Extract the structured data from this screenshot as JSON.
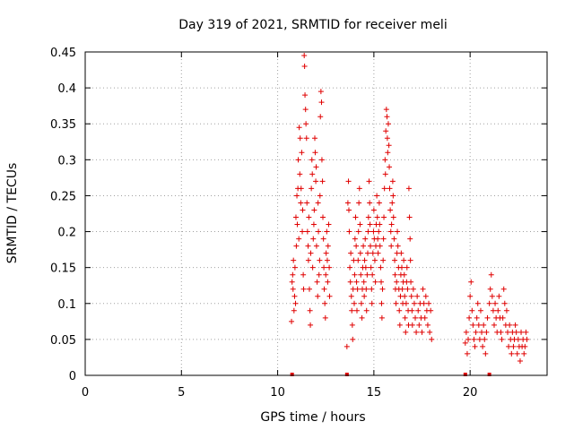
{
  "chart_data": {
    "type": "scatter",
    "title": "Day 319 of 2021, SRMTID for receiver meli",
    "xlabel": "GPS time / hours",
    "ylabel": "SRMTID / TECUs",
    "xlim": [
      0,
      24
    ],
    "ylim": [
      0,
      0.45
    ],
    "xticks": [
      "0",
      "5",
      "10",
      "15",
      "20"
    ],
    "xtick_values": [
      0,
      5,
      10,
      15,
      20
    ],
    "yticks": [
      "0",
      "0.05",
      "0.1",
      "0.15",
      "0.2",
      "0.25",
      "0.3",
      "0.35",
      "0.4",
      "0.45"
    ],
    "ytick_values": [
      0,
      0.05,
      0.1,
      0.15,
      0.2,
      0.25,
      0.3,
      0.35,
      0.4,
      0.45
    ],
    "grid": true,
    "marker": "+",
    "color": "#e00000",
    "zero_markers_x": [
      10.75,
      13.6,
      19.75,
      21.0
    ],
    "series": [
      {
        "name": "SRMTID",
        "points": [
          [
            10.72,
            0.075
          ],
          [
            10.75,
            0.13
          ],
          [
            10.78,
            0.14
          ],
          [
            10.8,
            0.12
          ],
          [
            10.82,
            0.16
          ],
          [
            10.85,
            0.09
          ],
          [
            10.88,
            0.11
          ],
          [
            10.9,
            0.15
          ],
          [
            10.93,
            0.1
          ],
          [
            10.95,
            0.22
          ],
          [
            10.97,
            0.18
          ],
          [
            11.0,
            0.25
          ],
          [
            11.02,
            0.21
          ],
          [
            11.05,
            0.26
          ],
          [
            11.07,
            0.3
          ],
          [
            11.1,
            0.19
          ],
          [
            11.12,
            0.345
          ],
          [
            11.15,
            0.28
          ],
          [
            11.17,
            0.33
          ],
          [
            11.2,
            0.24
          ],
          [
            11.22,
            0.26
          ],
          [
            11.25,
            0.31
          ],
          [
            11.28,
            0.2
          ],
          [
            11.3,
            0.23
          ],
          [
            11.33,
            0.14
          ],
          [
            11.35,
            0.12
          ],
          [
            11.38,
            0.445
          ],
          [
            11.4,
            0.43
          ],
          [
            11.42,
            0.39
          ],
          [
            11.45,
            0.37
          ],
          [
            11.47,
            0.35
          ],
          [
            11.5,
            0.33
          ],
          [
            11.52,
            0.24
          ],
          [
            11.55,
            0.2
          ],
          [
            11.58,
            0.18
          ],
          [
            11.6,
            0.16
          ],
          [
            11.62,
            0.22
          ],
          [
            11.65,
            0.12
          ],
          [
            11.68,
            0.09
          ],
          [
            11.7,
            0.07
          ],
          [
            11.72,
            0.17
          ],
          [
            11.75,
            0.26
          ],
          [
            11.78,
            0.3
          ],
          [
            11.8,
            0.28
          ],
          [
            11.82,
            0.15
          ],
          [
            11.85,
            0.19
          ],
          [
            11.88,
            0.21
          ],
          [
            11.9,
            0.23
          ],
          [
            11.93,
            0.33
          ],
          [
            11.95,
            0.31
          ],
          [
            11.98,
            0.27
          ],
          [
            12.0,
            0.29
          ],
          [
            12.02,
            0.18
          ],
          [
            12.05,
            0.13
          ],
          [
            12.08,
            0.11
          ],
          [
            12.1,
            0.24
          ],
          [
            12.12,
            0.2
          ],
          [
            12.15,
            0.14
          ],
          [
            12.18,
            0.16
          ],
          [
            12.2,
            0.25
          ],
          [
            12.22,
            0.36
          ],
          [
            12.25,
            0.395
          ],
          [
            12.28,
            0.38
          ],
          [
            12.3,
            0.3
          ],
          [
            12.33,
            0.27
          ],
          [
            12.35,
            0.22
          ],
          [
            12.38,
            0.19
          ],
          [
            12.4,
            0.15
          ],
          [
            12.42,
            0.12
          ],
          [
            12.45,
            0.1
          ],
          [
            12.48,
            0.08
          ],
          [
            12.5,
            0.14
          ],
          [
            12.52,
            0.17
          ],
          [
            12.55,
            0.2
          ],
          [
            12.58,
            0.16
          ],
          [
            12.6,
            0.13
          ],
          [
            12.62,
            0.18
          ],
          [
            12.65,
            0.21
          ],
          [
            12.68,
            0.15
          ],
          [
            12.7,
            0.11
          ],
          [
            13.6,
            0.04
          ],
          [
            13.65,
            0.24
          ],
          [
            13.68,
            0.27
          ],
          [
            13.7,
            0.23
          ],
          [
            13.72,
            0.2
          ],
          [
            13.75,
            0.15
          ],
          [
            13.78,
            0.13
          ],
          [
            13.8,
            0.17
          ],
          [
            13.83,
            0.11
          ],
          [
            13.85,
            0.09
          ],
          [
            13.88,
            0.07
          ],
          [
            13.9,
            0.05
          ],
          [
            13.92,
            0.12
          ],
          [
            13.95,
            0.16
          ],
          [
            13.98,
            0.1
          ],
          [
            14.0,
            0.14
          ],
          [
            14.02,
            0.19
          ],
          [
            14.05,
            0.22
          ],
          [
            14.08,
            0.18
          ],
          [
            14.1,
            0.13
          ],
          [
            14.12,
            0.09
          ],
          [
            14.15,
            0.12
          ],
          [
            14.18,
            0.16
          ],
          [
            14.2,
            0.2
          ],
          [
            14.22,
            0.24
          ],
          [
            14.25,
            0.26
          ],
          [
            14.28,
            0.21
          ],
          [
            14.3,
            0.17
          ],
          [
            14.32,
            0.14
          ],
          [
            14.35,
            0.1
          ],
          [
            14.38,
            0.08
          ],
          [
            14.4,
            0.12
          ],
          [
            14.42,
            0.15
          ],
          [
            14.45,
            0.18
          ],
          [
            14.48,
            0.13
          ],
          [
            14.5,
            0.11
          ],
          [
            14.52,
            0.16
          ],
          [
            14.55,
            0.19
          ],
          [
            14.58,
            0.15
          ],
          [
            14.6,
            0.12
          ],
          [
            14.62,
            0.09
          ],
          [
            14.65,
            0.14
          ],
          [
            14.68,
            0.17
          ],
          [
            14.7,
            0.2
          ],
          [
            14.72,
            0.22
          ],
          [
            14.75,
            0.27
          ],
          [
            14.78,
            0.24
          ],
          [
            14.8,
            0.21
          ],
          [
            14.82,
            0.18
          ],
          [
            14.85,
            0.15
          ],
          [
            14.88,
            0.12
          ],
          [
            14.9,
            0.1
          ],
          [
            14.92,
            0.14
          ],
          [
            14.95,
            0.17
          ],
          [
            14.98,
            0.2
          ],
          [
            15.0,
            0.23
          ],
          [
            15.02,
            0.19
          ],
          [
            15.05,
            0.16
          ],
          [
            15.08,
            0.13
          ],
          [
            15.1,
            0.18
          ],
          [
            15.12,
            0.21
          ],
          [
            15.15,
            0.25
          ],
          [
            15.18,
            0.22
          ],
          [
            15.2,
            0.19
          ],
          [
            15.22,
            0.17
          ],
          [
            15.25,
            0.2
          ],
          [
            15.28,
            0.24
          ],
          [
            15.3,
            0.21
          ],
          [
            15.32,
            0.18
          ],
          [
            15.35,
            0.15
          ],
          [
            15.38,
            0.13
          ],
          [
            15.4,
            0.1
          ],
          [
            15.42,
            0.08
          ],
          [
            15.45,
            0.12
          ],
          [
            15.48,
            0.16
          ],
          [
            15.5,
            0.19
          ],
          [
            15.52,
            0.22
          ],
          [
            15.55,
            0.26
          ],
          [
            15.58,
            0.3
          ],
          [
            15.6,
            0.28
          ],
          [
            15.62,
            0.34
          ],
          [
            15.65,
            0.37
          ],
          [
            15.68,
            0.36
          ],
          [
            15.7,
            0.33
          ],
          [
            15.72,
            0.31
          ],
          [
            15.75,
            0.35
          ],
          [
            15.78,
            0.32
          ],
          [
            15.8,
            0.29
          ],
          [
            15.82,
            0.26
          ],
          [
            15.85,
            0.23
          ],
          [
            15.88,
            0.2
          ],
          [
            15.9,
            0.18
          ],
          [
            15.92,
            0.21
          ],
          [
            15.95,
            0.24
          ],
          [
            15.98,
            0.27
          ],
          [
            16.0,
            0.25
          ],
          [
            16.02,
            0.22
          ],
          [
            16.05,
            0.19
          ],
          [
            16.08,
            0.16
          ],
          [
            16.1,
            0.14
          ],
          [
            16.12,
            0.12
          ],
          [
            16.15,
            0.1
          ],
          [
            16.18,
            0.13
          ],
          [
            16.2,
            0.17
          ],
          [
            16.22,
            0.2
          ],
          [
            16.25,
            0.18
          ],
          [
            16.28,
            0.15
          ],
          [
            16.3,
            0.12
          ],
          [
            16.32,
            0.09
          ],
          [
            16.35,
            0.07
          ],
          [
            16.38,
            0.11
          ],
          [
            16.4,
            0.14
          ],
          [
            16.42,
            0.17
          ],
          [
            16.45,
            0.15
          ],
          [
            16.48,
            0.12
          ],
          [
            16.5,
            0.1
          ],
          [
            16.52,
            0.13
          ],
          [
            16.55,
            0.16
          ],
          [
            16.58,
            0.14
          ],
          [
            16.6,
            0.11
          ],
          [
            16.62,
            0.08
          ],
          [
            16.65,
            0.06
          ],
          [
            16.68,
            0.1
          ],
          [
            16.7,
            0.13
          ],
          [
            16.72,
            0.15
          ],
          [
            16.75,
            0.12
          ],
          [
            16.78,
            0.09
          ],
          [
            16.8,
            0.07
          ],
          [
            16.82,
            0.26
          ],
          [
            16.85,
            0.22
          ],
          [
            16.88,
            0.19
          ],
          [
            16.9,
            0.16
          ],
          [
            16.92,
            0.13
          ],
          [
            16.95,
            0.11
          ],
          [
            16.98,
            0.09
          ],
          [
            17.0,
            0.07
          ],
          [
            17.05,
            0.12
          ],
          [
            17.1,
            0.1
          ],
          [
            17.15,
            0.08
          ],
          [
            17.2,
            0.06
          ],
          [
            17.25,
            0.11
          ],
          [
            17.3,
            0.09
          ],
          [
            17.35,
            0.07
          ],
          [
            17.4,
            0.1
          ],
          [
            17.45,
            0.08
          ],
          [
            17.5,
            0.06
          ],
          [
            17.55,
            0.12
          ],
          [
            17.6,
            0.1
          ],
          [
            17.65,
            0.08
          ],
          [
            17.7,
            0.11
          ],
          [
            17.75,
            0.09
          ],
          [
            17.8,
            0.07
          ],
          [
            17.85,
            0.1
          ],
          [
            17.9,
            0.06
          ],
          [
            17.95,
            0.09
          ],
          [
            18.0,
            0.05
          ],
          [
            19.75,
            0.045
          ],
          [
            19.8,
            0.06
          ],
          [
            19.85,
            0.03
          ],
          [
            19.9,
            0.05
          ],
          [
            19.95,
            0.08
          ],
          [
            20.0,
            0.11
          ],
          [
            20.05,
            0.13
          ],
          [
            20.1,
            0.09
          ],
          [
            20.15,
            0.07
          ],
          [
            20.2,
            0.05
          ],
          [
            20.25,
            0.04
          ],
          [
            20.3,
            0.06
          ],
          [
            20.35,
            0.08
          ],
          [
            20.4,
            0.1
          ],
          [
            20.45,
            0.07
          ],
          [
            20.5,
            0.05
          ],
          [
            20.55,
            0.09
          ],
          [
            20.6,
            0.06
          ],
          [
            20.65,
            0.04
          ],
          [
            20.7,
            0.07
          ],
          [
            20.75,
            0.05
          ],
          [
            20.8,
            0.03
          ],
          [
            20.85,
            0.06
          ],
          [
            20.9,
            0.08
          ],
          [
            21.0,
            0.1
          ],
          [
            21.05,
            0.12
          ],
          [
            21.1,
            0.14
          ],
          [
            21.15,
            0.11
          ],
          [
            21.2,
            0.09
          ],
          [
            21.25,
            0.07
          ],
          [
            21.3,
            0.1
          ],
          [
            21.35,
            0.08
          ],
          [
            21.4,
            0.06
          ],
          [
            21.45,
            0.09
          ],
          [
            21.5,
            0.11
          ],
          [
            21.55,
            0.08
          ],
          [
            21.6,
            0.06
          ],
          [
            21.65,
            0.05
          ],
          [
            21.7,
            0.08
          ],
          [
            21.75,
            0.12
          ],
          [
            21.8,
            0.1
          ],
          [
            21.85,
            0.07
          ],
          [
            21.9,
            0.09
          ],
          [
            21.95,
            0.06
          ],
          [
            22.0,
            0.04
          ],
          [
            22.05,
            0.07
          ],
          [
            22.1,
            0.05
          ],
          [
            22.15,
            0.03
          ],
          [
            22.2,
            0.06
          ],
          [
            22.25,
            0.04
          ],
          [
            22.3,
            0.05
          ],
          [
            22.35,
            0.07
          ],
          [
            22.4,
            0.06
          ],
          [
            22.45,
            0.03
          ],
          [
            22.5,
            0.05
          ],
          [
            22.55,
            0.04
          ],
          [
            22.6,
            0.02
          ],
          [
            22.65,
            0.06
          ],
          [
            22.7,
            0.04
          ],
          [
            22.75,
            0.05
          ],
          [
            22.8,
            0.03
          ],
          [
            22.85,
            0.04
          ],
          [
            22.9,
            0.06
          ],
          [
            22.95,
            0.05
          ]
        ]
      }
    ]
  }
}
